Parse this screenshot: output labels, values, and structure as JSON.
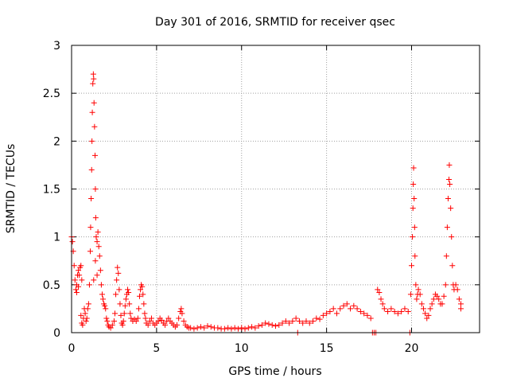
{
  "chart_data": {
    "type": "scatter",
    "title": "Day 301 of 2016, SRMTID for receiver qsec",
    "xlabel": "GPS time / hours",
    "ylabel": "SRMTID / TECUs",
    "xlim": [
      0,
      24
    ],
    "ylim": [
      0,
      3
    ],
    "xticks": [
      0,
      5,
      10,
      15,
      20
    ],
    "yticks": [
      0,
      0.5,
      1,
      1.5,
      2,
      2.5,
      3
    ],
    "xtick_labels": [
      "0",
      "5",
      "10",
      "15",
      "20"
    ],
    "ytick_labels": [
      "0",
      "0.5",
      "1",
      "1.5",
      "2",
      "2.5",
      "3"
    ],
    "grid": true,
    "marker": "+",
    "color": "#ff0000",
    "series": [
      {
        "name": "SRMTID",
        "points": [
          [
            0.0,
            1.0
          ],
          [
            0.05,
            0.95
          ],
          [
            0.1,
            0.85
          ],
          [
            0.15,
            0.7
          ],
          [
            0.2,
            0.55
          ],
          [
            0.25,
            0.45
          ],
          [
            0.3,
            0.5
          ],
          [
            0.35,
            0.6
          ],
          [
            0.4,
            0.65
          ],
          [
            0.45,
            0.6
          ],
          [
            0.5,
            0.68
          ],
          [
            0.55,
            0.7
          ],
          [
            0.6,
            0.55
          ],
          [
            0.3,
            0.42
          ],
          [
            0.4,
            0.48
          ],
          [
            0.55,
            0.18
          ],
          [
            0.6,
            0.1
          ],
          [
            0.65,
            0.08
          ],
          [
            0.7,
            0.15
          ],
          [
            0.75,
            0.25
          ],
          [
            0.8,
            0.2
          ],
          [
            0.85,
            0.12
          ],
          [
            0.9,
            0.15
          ],
          [
            0.95,
            0.25
          ],
          [
            1.0,
            0.3
          ],
          [
            1.05,
            0.5
          ],
          [
            1.1,
            0.85
          ],
          [
            1.12,
            1.1
          ],
          [
            1.15,
            1.4
          ],
          [
            1.18,
            1.7
          ],
          [
            1.2,
            2.0
          ],
          [
            1.22,
            2.3
          ],
          [
            1.25,
            2.6
          ],
          [
            1.28,
            2.7
          ],
          [
            1.3,
            2.65
          ],
          [
            1.32,
            2.4
          ],
          [
            1.35,
            2.15
          ],
          [
            1.38,
            1.85
          ],
          [
            1.4,
            1.5
          ],
          [
            1.42,
            1.2
          ],
          [
            1.45,
            1.0
          ],
          [
            1.5,
            0.95
          ],
          [
            1.55,
            1.05
          ],
          [
            1.6,
            0.9
          ],
          [
            1.65,
            0.8
          ],
          [
            1.7,
            0.65
          ],
          [
            1.75,
            0.5
          ],
          [
            1.8,
            0.4
          ],
          [
            1.85,
            0.35
          ],
          [
            1.9,
            0.3
          ],
          [
            1.95,
            0.28
          ],
          [
            2.0,
            0.25
          ],
          [
            1.3,
            0.55
          ],
          [
            1.4,
            0.75
          ],
          [
            1.5,
            0.6
          ],
          [
            2.05,
            0.15
          ],
          [
            2.1,
            0.12
          ],
          [
            2.15,
            0.08
          ],
          [
            2.2,
            0.06
          ],
          [
            2.3,
            0.05
          ],
          [
            2.4,
            0.08
          ],
          [
            2.5,
            0.12
          ],
          [
            2.55,
            0.2
          ],
          [
            2.6,
            0.4
          ],
          [
            2.65,
            0.55
          ],
          [
            2.7,
            0.68
          ],
          [
            2.75,
            0.62
          ],
          [
            2.8,
            0.45
          ],
          [
            2.85,
            0.3
          ],
          [
            2.9,
            0.18
          ],
          [
            2.95,
            0.1
          ],
          [
            3.0,
            0.08
          ],
          [
            3.05,
            0.12
          ],
          [
            3.1,
            0.2
          ],
          [
            3.15,
            0.28
          ],
          [
            3.2,
            0.35
          ],
          [
            3.25,
            0.4
          ],
          [
            3.3,
            0.45
          ],
          [
            3.35,
            0.42
          ],
          [
            3.4,
            0.3
          ],
          [
            3.45,
            0.2
          ],
          [
            3.5,
            0.15
          ],
          [
            3.6,
            0.12
          ],
          [
            3.7,
            0.14
          ],
          [
            3.8,
            0.12
          ],
          [
            3.9,
            0.15
          ],
          [
            3.95,
            0.25
          ],
          [
            4.0,
            0.38
          ],
          [
            4.05,
            0.45
          ],
          [
            4.1,
            0.5
          ],
          [
            4.15,
            0.48
          ],
          [
            4.2,
            0.4
          ],
          [
            4.25,
            0.3
          ],
          [
            4.3,
            0.2
          ],
          [
            4.35,
            0.15
          ],
          [
            4.4,
            0.1
          ],
          [
            4.5,
            0.08
          ],
          [
            4.6,
            0.12
          ],
          [
            4.7,
            0.15
          ],
          [
            4.8,
            0.1
          ],
          [
            4.9,
            0.08
          ],
          [
            5.0,
            0.1
          ],
          [
            5.1,
            0.12
          ],
          [
            5.2,
            0.15
          ],
          [
            5.3,
            0.13
          ],
          [
            5.4,
            0.1
          ],
          [
            5.5,
            0.08
          ],
          [
            5.6,
            0.12
          ],
          [
            5.7,
            0.15
          ],
          [
            5.8,
            0.12
          ],
          [
            5.9,
            0.1
          ],
          [
            6.0,
            0.08
          ],
          [
            6.1,
            0.06
          ],
          [
            6.2,
            0.08
          ],
          [
            6.3,
            0.15
          ],
          [
            6.4,
            0.22
          ],
          [
            6.45,
            0.25
          ],
          [
            6.5,
            0.2
          ],
          [
            6.6,
            0.12
          ],
          [
            6.7,
            0.08
          ],
          [
            6.8,
            0.06
          ],
          [
            6.9,
            0.05
          ],
          [
            7.0,
            0.05
          ],
          [
            7.2,
            0.04
          ],
          [
            7.4,
            0.05
          ],
          [
            7.6,
            0.06
          ],
          [
            7.8,
            0.05
          ],
          [
            8.0,
            0.07
          ],
          [
            8.2,
            0.06
          ],
          [
            8.4,
            0.05
          ],
          [
            8.6,
            0.05
          ],
          [
            8.8,
            0.04
          ],
          [
            9.0,
            0.04
          ],
          [
            9.2,
            0.05
          ],
          [
            9.4,
            0.04
          ],
          [
            9.6,
            0.05
          ],
          [
            9.8,
            0.04
          ],
          [
            10.0,
            0.05
          ],
          [
            10.2,
            0.04
          ],
          [
            10.4,
            0.05
          ],
          [
            10.6,
            0.06
          ],
          [
            10.8,
            0.05
          ],
          [
            11.0,
            0.07
          ],
          [
            11.2,
            0.08
          ],
          [
            11.4,
            0.1
          ],
          [
            11.6,
            0.09
          ],
          [
            11.8,
            0.08
          ],
          [
            12.0,
            0.07
          ],
          [
            12.2,
            0.08
          ],
          [
            12.4,
            0.1
          ],
          [
            12.6,
            0.12
          ],
          [
            12.8,
            0.1
          ],
          [
            13.0,
            0.12
          ],
          [
            13.2,
            0.15
          ],
          [
            13.4,
            0.12
          ],
          [
            13.3,
            0.0
          ],
          [
            13.6,
            0.1
          ],
          [
            13.8,
            0.12
          ],
          [
            14.0,
            0.1
          ],
          [
            14.2,
            0.12
          ],
          [
            14.4,
            0.15
          ],
          [
            14.6,
            0.14
          ],
          [
            14.8,
            0.18
          ],
          [
            15.0,
            0.2
          ],
          [
            15.2,
            0.22
          ],
          [
            15.4,
            0.25
          ],
          [
            15.6,
            0.2
          ],
          [
            15.8,
            0.25
          ],
          [
            16.0,
            0.28
          ],
          [
            16.2,
            0.3
          ],
          [
            16.4,
            0.25
          ],
          [
            16.6,
            0.28
          ],
          [
            16.8,
            0.25
          ],
          [
            17.0,
            0.22
          ],
          [
            17.2,
            0.2
          ],
          [
            17.4,
            0.18
          ],
          [
            17.6,
            0.15
          ],
          [
            17.7,
            0.0
          ],
          [
            17.8,
            0.0
          ],
          [
            17.9,
            0.0
          ],
          [
            18.0,
            0.45
          ],
          [
            18.1,
            0.42
          ],
          [
            18.2,
            0.35
          ],
          [
            18.3,
            0.3
          ],
          [
            18.4,
            0.25
          ],
          [
            18.6,
            0.22
          ],
          [
            18.8,
            0.25
          ],
          [
            19.0,
            0.22
          ],
          [
            19.2,
            0.2
          ],
          [
            19.4,
            0.22
          ],
          [
            19.6,
            0.25
          ],
          [
            19.8,
            0.22
          ],
          [
            19.9,
            0.0
          ],
          [
            19.95,
            0.4
          ],
          [
            20.0,
            0.7
          ],
          [
            20.05,
            1.0
          ],
          [
            20.08,
            1.3
          ],
          [
            20.1,
            1.55
          ],
          [
            20.12,
            1.72
          ],
          [
            20.15,
            1.4
          ],
          [
            20.18,
            1.1
          ],
          [
            20.2,
            0.8
          ],
          [
            20.25,
            0.5
          ],
          [
            20.3,
            0.35
          ],
          [
            20.35,
            0.4
          ],
          [
            20.4,
            0.45
          ],
          [
            20.5,
            0.4
          ],
          [
            20.6,
            0.3
          ],
          [
            20.7,
            0.25
          ],
          [
            20.8,
            0.2
          ],
          [
            20.9,
            0.15
          ],
          [
            21.0,
            0.18
          ],
          [
            21.1,
            0.25
          ],
          [
            21.2,
            0.3
          ],
          [
            21.3,
            0.35
          ],
          [
            21.4,
            0.4
          ],
          [
            21.5,
            0.38
          ],
          [
            21.6,
            0.35
          ],
          [
            21.7,
            0.3
          ],
          [
            21.8,
            0.3
          ],
          [
            21.9,
            0.38
          ],
          [
            22.0,
            0.5
          ],
          [
            22.05,
            0.8
          ],
          [
            22.1,
            1.1
          ],
          [
            22.15,
            1.4
          ],
          [
            22.2,
            1.6
          ],
          [
            22.22,
            1.75
          ],
          [
            22.25,
            1.55
          ],
          [
            22.3,
            1.3
          ],
          [
            22.35,
            1.0
          ],
          [
            22.4,
            0.7
          ],
          [
            22.45,
            0.5
          ],
          [
            22.5,
            0.45
          ],
          [
            22.6,
            0.5
          ],
          [
            22.7,
            0.45
          ],
          [
            22.8,
            0.35
          ],
          [
            22.9,
            0.3
          ],
          [
            22.9,
            0.25
          ]
        ]
      }
    ]
  }
}
